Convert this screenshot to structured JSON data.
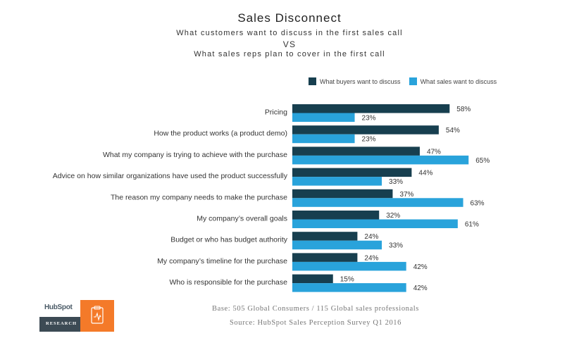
{
  "header": {
    "title": "Sales Disconnect",
    "line1": "What customers want to discuss in the first sales call",
    "line2": "VS",
    "line3": "What sales reps plan to cover in the first call"
  },
  "legend": {
    "buyers": "What buyers want to discuss",
    "sales": "What sales want to discuss"
  },
  "colors": {
    "buyers": "#173f4f",
    "sales": "#29a3db"
  },
  "chart_data": {
    "type": "bar",
    "orientation": "horizontal",
    "title": "Sales Disconnect",
    "categories": [
      "Pricing",
      "How the product works (a product demo)",
      "What my company is trying to achieve with the purchase",
      "Advice on how similar organizations have used the product successfully",
      "The reason my company needs to make the purchase",
      "My company’s overall goals",
      "Budget or who has budget authority",
      "My company’s timeline for the purchase",
      "Who is responsible for the purchase"
    ],
    "series": [
      {
        "name": "What buyers want to discuss",
        "values": [
          58,
          54,
          47,
          44,
          37,
          32,
          24,
          24,
          15
        ],
        "labels": [
          "58%",
          "54%",
          "47%",
          "44%",
          "37%",
          "32%",
          "24%",
          "24%",
          "15%"
        ]
      },
      {
        "name": "What sales want to discuss",
        "values": [
          23,
          23,
          65,
          33,
          63,
          61,
          33,
          42,
          42
        ],
        "labels": [
          "23%",
          "23%",
          "65%",
          "33%",
          "63%",
          "61%",
          "33%",
          "42%",
          "42%"
        ]
      }
    ],
    "xlim": [
      0,
      100
    ],
    "grid": false,
    "legend_position": "top-right"
  },
  "footer": {
    "base": "Base: 505 Global Consumers / 115 Global sales professionals",
    "source": "Source: HubSpot Sales Perception Survey Q1 2016"
  },
  "logo": {
    "brand": "HubSpot",
    "tag": "RESEARCH",
    "icon": "clipboard-chart-icon"
  }
}
